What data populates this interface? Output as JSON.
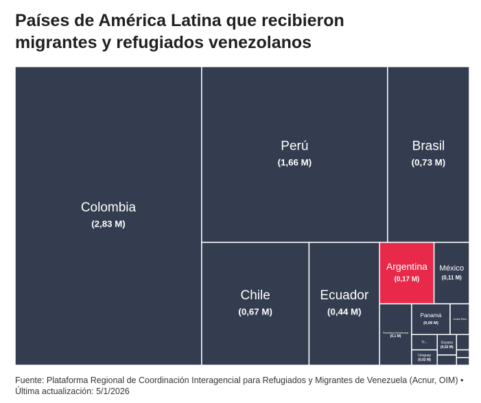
{
  "chart_data": {
    "type": "treemap",
    "title": "Países de América Latina que recibieron migrantes y refugiados venezolanos",
    "source": "Fuente: Plataforma Regional de Coordinación Interagencial para Refugiados y Migrantes de Venezuela (Acnur, OIM) • Última actualización: 5/1/2026",
    "categories": [
      "Colombia",
      "Perú",
      "Brasil",
      "Chile",
      "Ecuador",
      "Argentina",
      "México",
      "República Dominicana",
      "Panamá",
      "Costa Rica",
      "Tr...",
      "Uruguay",
      "Guyana",
      null,
      null,
      null,
      null
    ],
    "values": [
      2.83,
      1.66,
      0.73,
      0.67,
      0.44,
      0.17,
      0.11,
      0.1,
      0.06,
      0.03,
      0.02,
      0.02,
      0.02,
      0.01,
      0.01,
      0.005,
      0.005
    ],
    "value_labels": [
      "(2,83 M)",
      "(1,66 M)",
      "(0,73 M)",
      "(0,67 M)",
      "(0,44 M)",
      "(0,17 M)",
      "(0,11 M)",
      "(0,1 M)",
      "(0,06 M)",
      null,
      null,
      "(0,02 M)",
      "(0,02 M)",
      null,
      null,
      null,
      null
    ],
    "colors": [
      "#333d4f",
      "#333d4f",
      "#333d4f",
      "#333d4f",
      "#333d4f",
      "#e8294a",
      "#333d4f",
      "#333d4f",
      "#333d4f",
      "#333d4f",
      "#333d4f",
      "#333d4f",
      "#333d4f",
      "#333d4f",
      "#333d4f",
      "#333d4f",
      "#333d4f"
    ]
  }
}
